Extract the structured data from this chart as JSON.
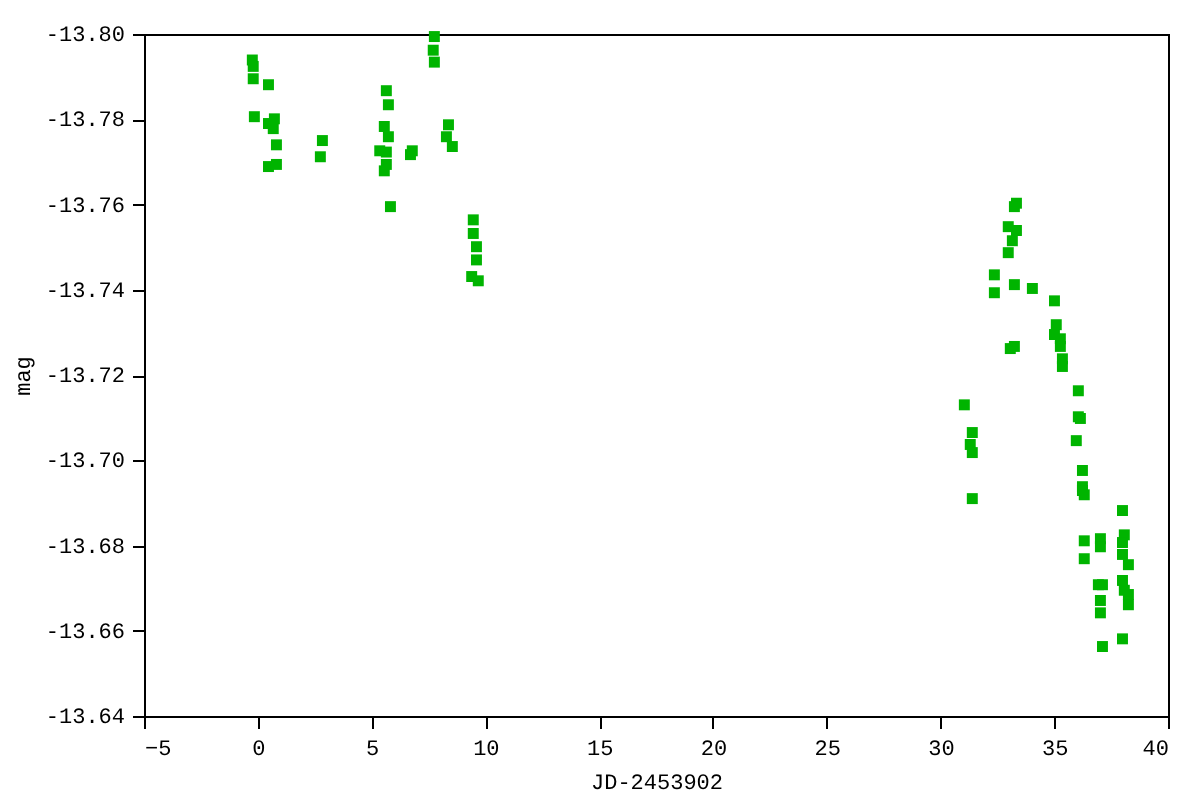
{
  "chart_data": {
    "type": "scatter",
    "xlabel": "JD-2453902",
    "ylabel": "mag",
    "marker": "square",
    "grid": false,
    "xlim": [
      -5,
      40
    ],
    "xticks": [
      -5,
      0,
      5,
      10,
      15,
      20,
      25,
      30,
      35,
      40
    ],
    "ylim": [
      -13.64,
      -13.8
    ],
    "yticks": [
      {
        "value": -13.8,
        "label": "-13.80"
      },
      {
        "value": -13.78,
        "label": "-13.78"
      },
      {
        "value": -13.76,
        "label": "-13.76"
      },
      {
        "value": -13.74,
        "label": "-13.74"
      },
      {
        "value": -13.72,
        "label": "-13.72"
      },
      {
        "value": -13.7,
        "label": "-13.70"
      },
      {
        "value": -13.68,
        "label": "-13.68"
      },
      {
        "value": -13.66,
        "label": "-13.66"
      },
      {
        "value": -13.64,
        "label": "-13.64"
      }
    ],
    "series": [
      {
        "color": "#00b400",
        "x": [
          -0.24,
          -0.2,
          -0.2,
          0.47,
          -0.15,
          0.73,
          0.47,
          0.68,
          0.82,
          0.47,
          0.82,
          2.84,
          2.75,
          5.65,
          5.74,
          5.56,
          5.74,
          5.36,
          5.65,
          5.65,
          5.56,
          5.83,
          7.76,
          7.71,
          7.76,
          8.38,
          8.29,
          8.55,
          6.79,
          6.71,
          9.47,
          9.47,
          9.61,
          9.61,
          9.4,
          9.69,
          33.34,
          33.25,
          32.98,
          33.34,
          33.16,
          32.98,
          32.37,
          32.37,
          33.25,
          34.04,
          33.07,
          33.25,
          35.01,
          35.09,
          35.01,
          35.27,
          35.27,
          35.36,
          35.36,
          36.06,
          36.06,
          36.15,
          35.97,
          36.24,
          36.24,
          36.24,
          36.32,
          31.05,
          31.4,
          31.31,
          31.4,
          31.4,
          36.32,
          36.32,
          37.03,
          37.03,
          38.0,
          38.08,
          38.0,
          38.0,
          38.26,
          36.94,
          37.12,
          37.03,
          37.03,
          38.0,
          38.08,
          38.26,
          38.26,
          38.0,
          37.12
        ],
        "values": [
          -13.7939,
          -13.7924,
          -13.7895,
          -13.7881,
          -13.7806,
          -13.7801,
          -13.779,
          -13.7778,
          -13.774,
          -13.7689,
          -13.7694,
          -13.775,
          -13.7712,
          -13.7867,
          -13.7834,
          -13.7783,
          -13.7759,
          -13.7726,
          -13.7723,
          -13.7694,
          -13.7679,
          -13.7595,
          -13.7994,
          -13.7962,
          -13.7934,
          -13.7787,
          -13.7759,
          -13.7736,
          -13.7726,
          -13.7717,
          -13.7564,
          -13.7532,
          -13.7501,
          -13.747,
          -13.7431,
          -13.7421,
          -13.7603,
          -13.7595,
          -13.7548,
          -13.7539,
          -13.7515,
          -13.7487,
          -13.7435,
          -13.7393,
          -13.7412,
          -13.7403,
          -13.7262,
          -13.7267,
          -13.7374,
          -13.7318,
          -13.7295,
          -13.7285,
          -13.7267,
          -13.7238,
          -13.722,
          -13.7163,
          -13.7102,
          -13.7098,
          -13.7046,
          -13.6976,
          -13.6938,
          -13.6929,
          -13.6919,
          -13.713,
          -13.7065,
          -13.7037,
          -13.7018,
          -13.691,
          -13.6811,
          -13.6769,
          -13.6816,
          -13.6797,
          -13.6882,
          -13.6825,
          -13.6807,
          -13.6779,
          -13.6755,
          -13.6708,
          -13.6708,
          -13.6671,
          -13.6642,
          -13.6718,
          -13.6695,
          -13.6685,
          -13.6661,
          -13.6581,
          -13.6563
        ]
      }
    ]
  }
}
